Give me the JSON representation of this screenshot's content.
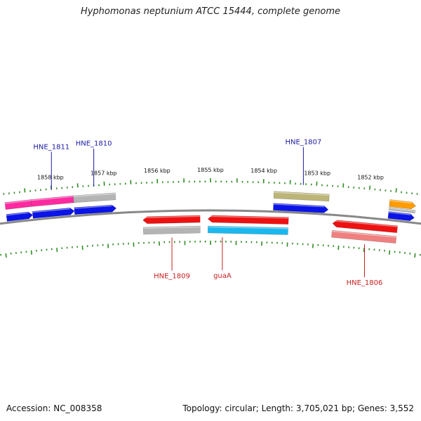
{
  "header": {
    "title": "Hyphomonas neptunium ATCC 15444, complete genome"
  },
  "footer": {
    "accession": "Accession: NC_008358",
    "summary": "Topology: circular; Length: 3,705,021 bp; Genes: 3,552"
  },
  "colors": {
    "backbone": "#888888",
    "tick": "#2e8b22",
    "forward_label": "#1a1aa6",
    "reverse_label": "#c81e1e",
    "cds_blue": "#0a14e6",
    "cds_red": "#ee1111",
    "cds_pink": "#ff2aa0",
    "cds_gray": "#b4b4b4",
    "cds_olive": "#bdb478",
    "cds_cyan": "#1ab8ee",
    "cds_salmon": "#f08080",
    "cds_orange": "#ff9d00"
  },
  "scale_labels": [
    {
      "text": "1858 kbp",
      "pos": 1858.0
    },
    {
      "text": "1857 kbp",
      "pos": 1857.0
    },
    {
      "text": "1856 kbp",
      "pos": 1856.0
    },
    {
      "text": "1855 kbp",
      "pos": 1855.0
    },
    {
      "text": "1854 kbp",
      "pos": 1854.0
    },
    {
      "text": "1853 kbp",
      "pos": 1853.0
    },
    {
      "text": "1852 kbp",
      "pos": 1852.0
    }
  ],
  "gene_labels": [
    {
      "text": "HNE_1811",
      "strand": "forward",
      "pos": 1858.0
    },
    {
      "text": "HNE_1810",
      "strand": "forward",
      "pos": 1857.2
    },
    {
      "text": "HNE_1807",
      "strand": "forward",
      "pos": 1853.25
    },
    {
      "text": "HNE_1809",
      "strand": "reverse",
      "pos": 1855.75
    },
    {
      "text": "guaA",
      "strand": "reverse",
      "pos": 1854.77
    },
    {
      "text": "HNE_1806",
      "strand": "reverse",
      "pos": 1852.0
    }
  ],
  "features": [
    {
      "track": "f2",
      "start": 1858.9,
      "end": 1858.4,
      "color": "cds_pink",
      "arrow": false
    },
    {
      "track": "f2",
      "start": 1858.4,
      "end": 1857.6,
      "color": "cds_pink",
      "arrow": false
    },
    {
      "track": "f2",
      "start": 1857.6,
      "end": 1856.8,
      "color": "cds_gray",
      "arrow": false
    },
    {
      "track": "f1",
      "start": 1858.9,
      "end": 1858.4,
      "color": "cds_blue",
      "arrow": true
    },
    {
      "track": "f1",
      "start": 1858.4,
      "end": 1857.6,
      "color": "cds_blue",
      "arrow": true
    },
    {
      "track": "f1",
      "start": 1857.6,
      "end": 1856.8,
      "color": "cds_blue",
      "arrow": true
    },
    {
      "track": "f2",
      "start": 1853.8,
      "end": 1852.75,
      "color": "cds_olive",
      "arrow": false
    },
    {
      "track": "f1",
      "start": 1853.8,
      "end": 1852.75,
      "color": "cds_blue",
      "arrow": true
    },
    {
      "track": "f2",
      "start": 1851.6,
      "end": 1851.1,
      "color": "cds_orange",
      "arrow": true
    },
    {
      "track": "f2b",
      "start": 1851.6,
      "end": 1851.1,
      "color": "cds_gray",
      "arrow": false
    },
    {
      "track": "f1",
      "start": 1851.6,
      "end": 1851.1,
      "color": "cds_blue",
      "arrow": true
    },
    {
      "track": "r1",
      "start": 1856.3,
      "end": 1855.2,
      "color": "cds_red",
      "arrow": true
    },
    {
      "track": "r2",
      "start": 1856.3,
      "end": 1855.2,
      "color": "cds_gray",
      "arrow": false
    },
    {
      "track": "r1",
      "start": 1855.05,
      "end": 1853.5,
      "color": "cds_red",
      "arrow": true
    },
    {
      "track": "r2",
      "start": 1855.05,
      "end": 1853.5,
      "color": "cds_cyan",
      "arrow": false
    },
    {
      "track": "r1",
      "start": 1852.65,
      "end": 1851.4,
      "color": "cds_red",
      "arrow": true
    },
    {
      "track": "r2",
      "start": 1852.65,
      "end": 1851.4,
      "color": "cds_salmon",
      "arrow": false
    }
  ]
}
